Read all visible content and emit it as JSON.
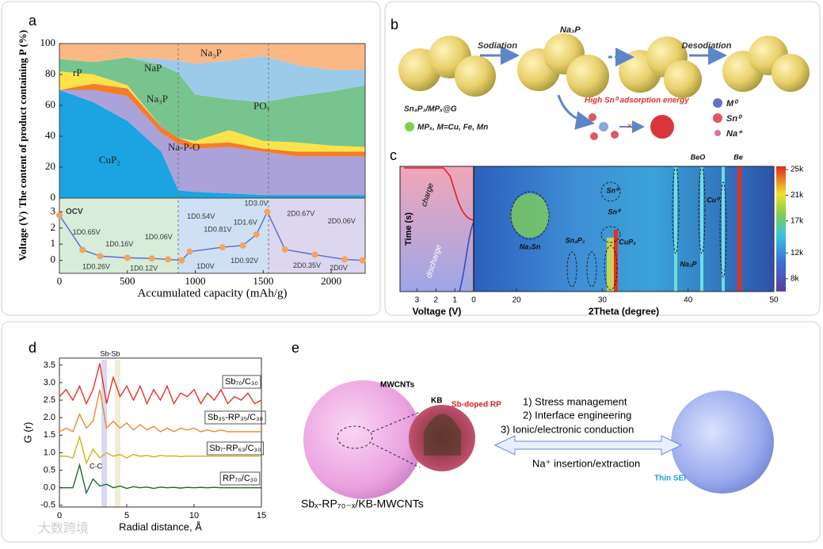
{
  "panel_labels": [
    "a",
    "b",
    "c",
    "d",
    "e"
  ],
  "chart_data": [
    {
      "type": "area",
      "ylabel": "The content of product containing P (%)",
      "x": [
        0,
        250,
        500,
        750,
        875,
        1000,
        1250,
        1500,
        1750,
        2000,
        2250
      ],
      "xlim": [
        0,
        2250
      ],
      "ylim": [
        0,
        100
      ],
      "yticks": [
        0,
        20,
        40,
        60,
        80,
        100
      ],
      "series": [
        {
          "name": "CuP₂",
          "color": "#1ba3e2",
          "values": [
            70,
            62,
            50,
            30,
            5,
            4,
            3,
            2,
            2,
            2,
            2
          ]
        },
        {
          "name": "Na-P-O",
          "color": "#aaa2d9",
          "values": [
            0,
            8,
            16,
            12,
            30,
            28,
            30,
            28,
            25,
            25,
            25
          ]
        },
        {
          "name": "Na₃P",
          "color": "#f47c2c",
          "values": [
            0,
            4,
            5,
            4,
            4,
            3,
            3,
            2,
            3,
            3,
            3
          ]
        },
        {
          "name": "rP",
          "color": "#fde34a",
          "values": [
            12,
            6,
            2,
            0,
            0,
            2,
            8,
            5,
            6,
            4,
            3
          ]
        },
        {
          "name": "NaP",
          "color": "#78c48f",
          "values": [
            8,
            8,
            18,
            40,
            42,
            30,
            20,
            25,
            30,
            35,
            40
          ]
        },
        {
          "name": "POₓ",
          "color": "#9ccbea",
          "values": [
            0,
            0,
            0,
            4,
            8,
            20,
            25,
            30,
            20,
            14,
            10
          ]
        },
        {
          "name": "Na₃P",
          "color": "#f9b885",
          "values": [
            10,
            12,
            9,
            10,
            11,
            13,
            11,
            8,
            14,
            17,
            17
          ]
        }
      ]
    },
    {
      "type": "line",
      "xlabel": "Accumulated capacity (mAh/g)",
      "ylabel": "Voltage (V)",
      "x": [
        0,
        170,
        300,
        500,
        680,
        800,
        900,
        960,
        1200,
        1350,
        1450,
        1530,
        1660,
        1880,
        2100,
        2230
      ],
      "xlim": [
        0,
        2250
      ],
      "ylim": [
        -0.8,
        3.85
      ],
      "xticks": [
        0,
        500,
        1000,
        1500,
        2000
      ],
      "yticks": [
        0,
        1,
        2,
        3
      ],
      "series": [
        {
          "color": "#5868d0",
          "marker_color": "#f6a35c",
          "values": [
            2.8,
            0.65,
            0.26,
            0.16,
            0.12,
            0.06,
            0,
            0.54,
            0.81,
            0.92,
            1.6,
            3.0,
            0.67,
            0.35,
            0.06,
            0
          ]
        }
      ],
      "annotations": [
        "OCV",
        "1D0.65V",
        "1D0.26V",
        "1D0.16V",
        "1D0.12V",
        "1D0.06V",
        "1D0V",
        "1D0.54V",
        "1D0.81V",
        "1D0.92V",
        "1D1.6V",
        "1D3.0V",
        "2D0.67V",
        "2D0.35V",
        "2D0.06V",
        "2D0V"
      ]
    },
    {
      "type": "heatmap",
      "xlabel": "2Theta (degree)",
      "ylabel": "Time (s)",
      "xlim": [
        15,
        50
      ],
      "xticks": [
        20,
        30,
        40,
        50
      ],
      "clim": [
        6000,
        25500
      ],
      "cticks": [
        {
          "value": 8000,
          "label": "8k"
        },
        {
          "value": 12000,
          "label": "12k"
        },
        {
          "value": 17000,
          "label": "17k"
        },
        {
          "value": 21000,
          "label": "21k"
        },
        {
          "value": 25000,
          "label": "25k"
        }
      ],
      "annotations": [
        "Na₃Sn",
        "Sn₄P₃",
        "CuP₂",
        "Sn⁰",
        "Sn⁰",
        "BeO",
        "Be",
        "Cu⁰",
        "Na₃P"
      ]
    },
    {
      "type": "line",
      "xlabel": "Voltage (V)",
      "xlim": [
        3.9,
        0
      ],
      "xticks": [
        3,
        2,
        1,
        0
      ],
      "annotations": [
        "charge",
        "discharge"
      ]
    },
    {
      "type": "line",
      "xlabel": "Radial distance, Å",
      "ylabel": "G (r)",
      "x": [
        0,
        0.5,
        1,
        1.5,
        2,
        2.5,
        3,
        3.5,
        4,
        4.5,
        5,
        5.5,
        6,
        6.5,
        7,
        7.5,
        8,
        8.5,
        9,
        9.5,
        10,
        10.5,
        11,
        11.5,
        12,
        12.5,
        13,
        13.5,
        14,
        14.5,
        15
      ],
      "xlim": [
        0,
        15
      ],
      "ylim": [
        -0.55,
        3.7
      ],
      "xticks": [
        0,
        5,
        10,
        15
      ],
      "yticks": [
        {
          "value": -0.5,
          "label": "-0.5"
        },
        {
          "value": 0,
          "label": "0.0"
        },
        0.5,
        {
          "value": 1,
          "label": "1.0"
        },
        1.5,
        {
          "value": 2,
          "label": "2.0"
        },
        2.5,
        {
          "value": 3,
          "label": "3.0"
        },
        3.5
      ],
      "series": [
        {
          "name": "Sb₇₀/C₃₀",
          "color": "#e3322c",
          "values": [
            2.6,
            2.8,
            2.5,
            2.9,
            2.4,
            2.8,
            3.55,
            2.4,
            3.15,
            2.6,
            2.9,
            2.5,
            2.9,
            2.4,
            2.8,
            2.5,
            2.9,
            2.4,
            2.7,
            2.6,
            2.8,
            2.4,
            2.7,
            2.5,
            2.8,
            2.4,
            2.6,
            2.5,
            2.7,
            2.4,
            2.5
          ]
        },
        {
          "name": "Sb₃₅-RP₃₅/C₃₀",
          "color": "#e98a2b",
          "values": [
            1.6,
            1.7,
            1.6,
            2.1,
            1.7,
            1.9,
            2.8,
            1.7,
            1.9,
            1.7,
            1.85,
            1.65,
            1.8,
            1.65,
            1.75,
            1.6,
            1.7,
            1.6,
            1.7,
            1.65,
            1.7,
            1.6,
            1.65,
            1.6,
            1.65,
            1.6,
            1.6,
            1.6,
            1.6,
            1.6,
            1.6
          ]
        },
        {
          "name": "Sb₇-RP₆₃/C₃₀",
          "color": "#c9b617",
          "values": [
            0.9,
            0.9,
            0.85,
            1.45,
            0.7,
            1.1,
            0.85,
            1.0,
            0.9,
            0.95,
            0.85,
            0.95,
            0.9,
            0.92,
            0.88,
            0.92,
            0.9,
            0.91,
            0.89,
            0.9,
            0.9,
            0.9,
            0.9,
            0.9,
            0.9,
            0.9,
            0.9,
            0.9,
            0.9,
            0.9,
            0.9
          ]
        },
        {
          "name": "RP₇₀/C₃₀",
          "color": "#1f6a2b",
          "values": [
            0,
            0,
            0,
            0.65,
            -0.15,
            0.25,
            0.05,
            0.1,
            0,
            0.05,
            -0.02,
            0.03,
            0,
            0.02,
            -0.02,
            0.02,
            0,
            0.01,
            -0.01,
            0.01,
            0,
            0.01,
            0,
            0.01,
            0,
            0,
            0,
            0,
            0,
            0,
            0
          ]
        }
      ],
      "annotations": [
        "Sb-Sb",
        "C-C"
      ]
    }
  ],
  "diagram_b": {
    "texts": [
      "Sodiation",
      "Na₃P",
      "Desodiation",
      "High Sn⁰ adsorption energy",
      "Sn₄P₃/MPₓ@G",
      "MPₓ, M=Cu, Fe, Mn",
      "M⁰",
      "Sn⁰",
      "Na⁺"
    ]
  },
  "diagram_e": {
    "texts": [
      "MWCNTs",
      "KB",
      "Sb-doped RP",
      "1) Stress management",
      "2) Interface engineering",
      "3) Ionic/electronic conduction",
      "Na⁺ insertion/extraction",
      "Thin SEI",
      "Sbₓ-RP₇₀₋ₓ/KB-MWCNTs"
    ]
  },
  "watermark": "大数跨境"
}
